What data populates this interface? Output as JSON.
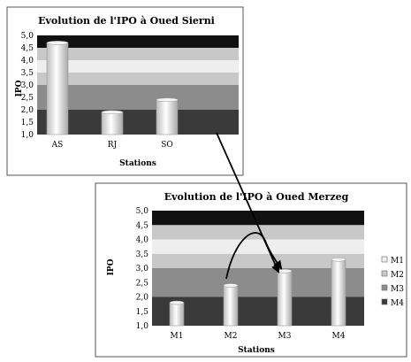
{
  "chart_data": [
    {
      "type": "bar",
      "title": "Evolution de l'IPO à Oued Sierni",
      "xlabel": "Stations",
      "ylabel": "IPO",
      "categories": [
        "AS",
        "RJ",
        "SO"
      ],
      "values": [
        4.7,
        1.9,
        2.4
      ],
      "ylim": [
        1.0,
        5.0
      ],
      "yticks": [
        "1,0",
        "1,5",
        "2,0",
        "2,5",
        "3,0",
        "3,5",
        "4,0",
        "4,5",
        "5,0"
      ],
      "legend": []
    },
    {
      "type": "bar",
      "title": "Evolution de l'IPO à Oued Merzeg",
      "xlabel": "Stations",
      "ylabel": "IPO",
      "categories": [
        "M1",
        "M2",
        "M3",
        "M4"
      ],
      "values": [
        1.8,
        2.4,
        2.9,
        3.3
      ],
      "ylim": [
        1.0,
        5.0
      ],
      "yticks": [
        "1,0",
        "1,5",
        "2,0",
        "2,5",
        "3,0",
        "3,5",
        "4,0",
        "4,5",
        "5,0"
      ],
      "legend": [
        "M1",
        "M2",
        "M3",
        "M4"
      ],
      "legend_position": "right"
    }
  ],
  "colors": {
    "band_darkest": "#111111",
    "band_dark": "#3a3a3a",
    "band_mid": "#8c8c8c",
    "band_light": "#c8c8c8",
    "band_lightest": "#eeeeee",
    "bar_fill": "#e8e8e8",
    "arrow": "#000000"
  }
}
